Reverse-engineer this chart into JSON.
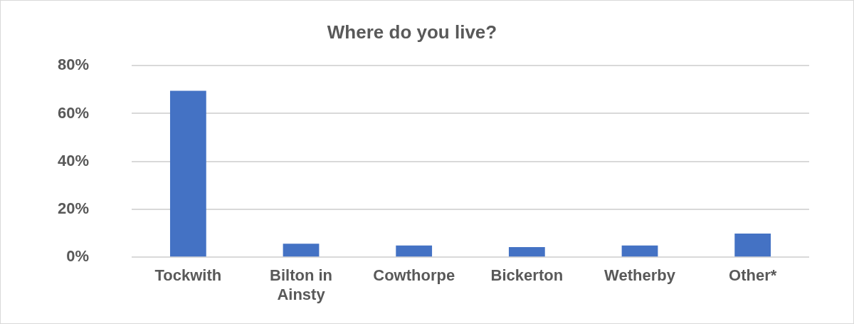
{
  "chart_data": {
    "type": "bar",
    "title": "Where do you live?",
    "categories": [
      "Tockwith",
      "Bilton in Ainsty",
      "Cowthorpe",
      "Bickerton",
      "Wetherby",
      "Other*"
    ],
    "values": [
      69.5,
      5.6,
      4.9,
      4.2,
      4.9,
      9.9
    ],
    "color": "#4472c4",
    "ylim": [
      0,
      80
    ],
    "yticks": [
      {
        "value": 0,
        "label": "0%"
      },
      {
        "value": 20,
        "label": "20%"
      },
      {
        "value": 40,
        "label": "40%"
      },
      {
        "value": 60,
        "label": "60%"
      },
      {
        "value": 80,
        "label": "80%"
      }
    ],
    "grid": "y",
    "legend": false
  }
}
